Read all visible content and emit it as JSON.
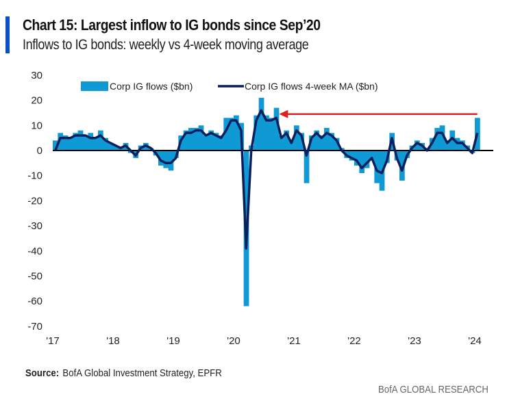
{
  "title": "Chart 15: Largest inflow to IG bonds since Sep’20",
  "subtitle": "Inflows to IG bonds: weekly vs 4-week moving average",
  "source_label": "Source:",
  "source_text": "BofA Global Investment Strategy, EPFR",
  "brand": "BofA GLOBAL RESEARCH",
  "colors": {
    "flows": "#0f9ad6",
    "ma": "#0b1f5c",
    "arrow": "#e02020",
    "accent": "#0a4fc4"
  },
  "chart_data": {
    "type": "bar+line",
    "title": "Chart 15: Largest inflow to IG bonds since Sep’20",
    "xlabel": "",
    "ylabel": "",
    "ylim": [
      -70,
      30
    ],
    "yticks": [
      "30",
      "20",
      "10",
      "0",
      "-10",
      "-20",
      "-30",
      "-40",
      "-50",
      "-60",
      "-70"
    ],
    "ytick_values": [
      30,
      20,
      10,
      0,
      -10,
      -20,
      -30,
      -40,
      -50,
      -60,
      -70
    ],
    "xticks": [
      "'17",
      "'18",
      "'19",
      "'20",
      "'21",
      "'22",
      "'23",
      "'24"
    ],
    "xtick_years": [
      2017,
      2018,
      2019,
      2020,
      2021,
      2022,
      2023,
      2024
    ],
    "grid": false,
    "legend_placement": "top",
    "annotation": {
      "type": "arrow",
      "y": 14.5,
      "from": "2024-01",
      "to": "2020-09"
    },
    "dates": [
      "2017-01",
      "2017-02",
      "2017-03",
      "2017-04",
      "2017-05",
      "2017-06",
      "2017-07",
      "2017-08",
      "2017-09",
      "2017-10",
      "2017-11",
      "2017-12",
      "2018-01",
      "2018-02",
      "2018-03",
      "2018-04",
      "2018-05",
      "2018-06",
      "2018-07",
      "2018-08",
      "2018-09",
      "2018-10",
      "2018-11",
      "2018-12",
      "2019-01",
      "2019-02",
      "2019-03",
      "2019-04",
      "2019-05",
      "2019-06",
      "2019-07",
      "2019-08",
      "2019-09",
      "2019-10",
      "2019-11",
      "2019-12",
      "2020-01",
      "2020-02",
      "2020-03",
      "2020-04",
      "2020-05",
      "2020-06",
      "2020-07",
      "2020-08",
      "2020-09",
      "2020-10",
      "2020-11",
      "2020-12",
      "2021-01",
      "2021-02",
      "2021-03",
      "2021-04",
      "2021-05",
      "2021-06",
      "2021-07",
      "2021-08",
      "2021-09",
      "2021-10",
      "2021-11",
      "2021-12",
      "2022-01",
      "2022-02",
      "2022-03",
      "2022-04",
      "2022-05",
      "2022-06",
      "2022-07",
      "2022-08",
      "2022-09",
      "2022-10",
      "2022-11",
      "2022-12",
      "2023-01",
      "2023-02",
      "2023-03",
      "2023-04",
      "2023-05",
      "2023-06",
      "2023-07",
      "2023-08",
      "2023-09",
      "2023-10",
      "2023-11",
      "2023-12",
      "2024-01"
    ],
    "series": [
      {
        "name": "Corp IG flows ($bn)",
        "kind": "bar",
        "values": [
          4,
          7,
          6,
          5,
          7,
          8,
          6,
          7,
          5,
          8,
          5,
          3,
          2,
          1,
          3,
          -1,
          -3,
          2,
          3,
          1,
          -2,
          -6,
          -7,
          -8,
          -3,
          6,
          8,
          9,
          9,
          10,
          6,
          8,
          7,
          6,
          13,
          13,
          14,
          11,
          -62,
          2,
          14,
          21,
          14,
          13,
          17,
          6,
          8,
          4,
          10,
          7,
          -13,
          6,
          8,
          6,
          9,
          7,
          5,
          1,
          -3,
          -4,
          -6,
          -9,
          -7,
          -4,
          -13,
          -16,
          -5,
          7,
          -4,
          -12,
          -3,
          2,
          4,
          3,
          1,
          5,
          9,
          10,
          4,
          8,
          5,
          4,
          2,
          -1,
          13
        ]
      },
      {
        "name": "Corp IG flows 4-week MA ($bn)",
        "kind": "line",
        "values": [
          0,
          5,
          5,
          5,
          6,
          6,
          6,
          5,
          5,
          6,
          4,
          3,
          2,
          1,
          2,
          0,
          -2,
          1,
          2,
          1,
          -1,
          -4,
          -5,
          -5,
          -3,
          4,
          7,
          7,
          8,
          8,
          6,
          7,
          6,
          5,
          8,
          12,
          12,
          8,
          -39,
          0,
          12,
          16,
          12,
          12,
          13,
          5,
          7,
          3,
          8,
          6,
          -2,
          5,
          7,
          5,
          7,
          6,
          4,
          0,
          -2,
          -3,
          -4,
          -7,
          -5,
          -3,
          -8,
          -9,
          -4,
          5,
          -3,
          -8,
          -2,
          1,
          3,
          2,
          0,
          3,
          7,
          7,
          3,
          5,
          3,
          3,
          1,
          -1,
          7
        ]
      }
    ]
  }
}
